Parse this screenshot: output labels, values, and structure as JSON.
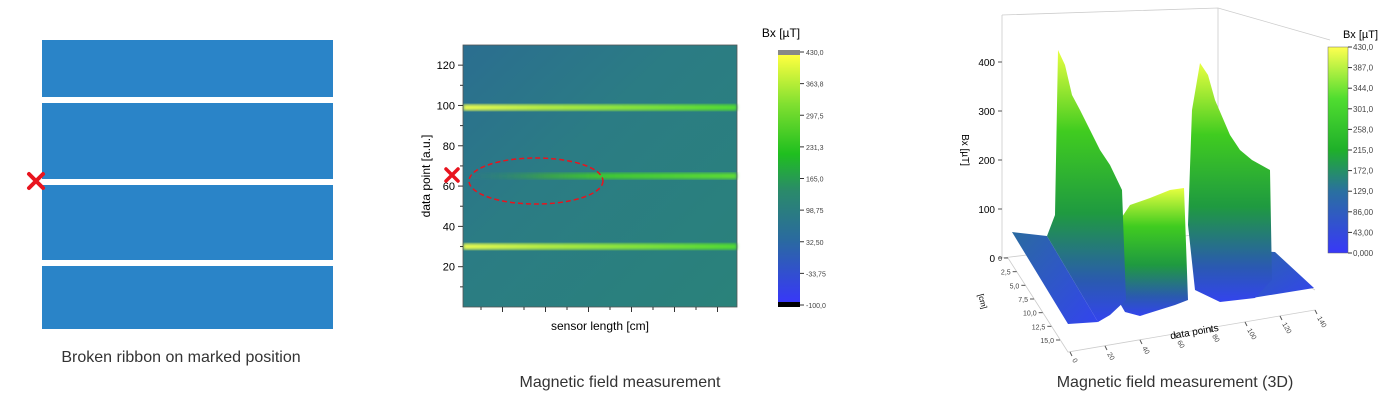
{
  "panels": {
    "left": {
      "caption": "Broken ribbon on marked position",
      "ribbon_color": "#2a84c8",
      "marker_color": "#e8141e",
      "segments": 4
    },
    "middle": {
      "caption": "Magnetic field measurement"
    },
    "right": {
      "caption": "Magnetic field measurement (3D)"
    }
  },
  "chart_data": [
    {
      "type": "heatmap",
      "xlabel": "sensor length [cm]",
      "ylabel": "data point [a.u.]",
      "ylim": [
        0,
        130
      ],
      "yticks": [
        "20",
        "40",
        "60",
        "80",
        "100",
        "120"
      ],
      "bands_y": [
        99,
        65,
        30
      ],
      "marked_y": 65,
      "annotation": "red dashed ellipse marks missing field on middle band (left half)",
      "colorbar": {
        "title": "Bx [µT]",
        "ticks": [
          "430,0",
          "363,8",
          "297,5",
          "231,3",
          "165,0",
          "98,75",
          "32,50",
          "-33,75",
          "-100,0"
        ],
        "range": [
          -100,
          430
        ]
      },
      "colors": {
        "low": "#3a3af0",
        "mid": "#2a7e7a",
        "high": "#ffff33"
      }
    },
    {
      "type": "surface",
      "zlabel": "Bx [µT]",
      "xlabel": "data points",
      "ylabel": "[cm]",
      "zticks": [
        "0",
        "100",
        "200",
        "300",
        "400"
      ],
      "yticks": [
        "0",
        "2,5",
        "5,0",
        "7,5",
        "10,0",
        "12,5",
        "15,0"
      ],
      "xticks": [
        "0",
        "20",
        "40",
        "60",
        "80",
        "100",
        "120",
        "140"
      ],
      "peaks_z": [
        420,
        395
      ],
      "colorbar": {
        "title": "Bx [µT]",
        "ticks": [
          "430,0",
          "387,0",
          "344,0",
          "301,0",
          "258,0",
          "215,0",
          "172,0",
          "129,0",
          "86,00",
          "43,00",
          "0,000"
        ],
        "range": [
          0,
          430
        ]
      }
    }
  ]
}
